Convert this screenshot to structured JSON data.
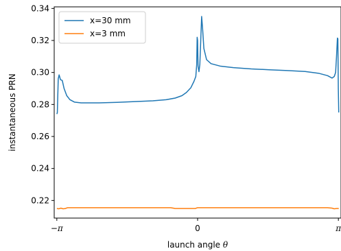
{
  "chart_data": {
    "type": "line",
    "xlabel": "launch angle",
    "xlabel_symbol": "θ",
    "ylabel": "instantaneous PRN",
    "xlim": [
      -3.2,
      3.2
    ],
    "ylim": [
      0.209,
      0.341
    ],
    "x_ticks": [
      {
        "value": -3.14159,
        "minus": "−",
        "symbol": "π"
      },
      {
        "value": 0,
        "minus": "",
        "symbol": "0"
      },
      {
        "value": 3.14159,
        "minus": "",
        "symbol": "π"
      }
    ],
    "y_ticks": [
      {
        "value": 0.22,
        "label": "0.22"
      },
      {
        "value": 0.24,
        "label": "0.24"
      },
      {
        "value": 0.26,
        "label": "0.26"
      },
      {
        "value": 0.28,
        "label": "0.28"
      },
      {
        "value": 0.3,
        "label": "0.30"
      },
      {
        "value": 0.32,
        "label": "0.32"
      },
      {
        "value": 0.34,
        "label": "0.34"
      }
    ],
    "grid": false,
    "legend_position": "top-left",
    "series": [
      {
        "name": "x=30 mm",
        "color": "#1f77b4",
        "points": [
          [
            -3.14,
            0.274
          ],
          [
            -3.13,
            0.275
          ],
          [
            -3.11,
            0.296
          ],
          [
            -3.09,
            0.2985
          ],
          [
            -3.06,
            0.2955
          ],
          [
            -3.02,
            0.295
          ],
          [
            -2.98,
            0.29
          ],
          [
            -2.92,
            0.2855
          ],
          [
            -2.85,
            0.283
          ],
          [
            -2.75,
            0.2815
          ],
          [
            -2.6,
            0.281
          ],
          [
            -2.2,
            0.281
          ],
          [
            -1.8,
            0.2813
          ],
          [
            -1.4,
            0.2818
          ],
          [
            -1.0,
            0.2823
          ],
          [
            -0.7,
            0.283
          ],
          [
            -0.5,
            0.284
          ],
          [
            -0.35,
            0.2855
          ],
          [
            -0.25,
            0.2875
          ],
          [
            -0.15,
            0.2905
          ],
          [
            -0.08,
            0.2945
          ],
          [
            -0.04,
            0.2975
          ],
          [
            -0.02,
            0.305
          ],
          [
            -0.01,
            0.322
          ],
          [
            0.0,
            0.32
          ],
          [
            0.01,
            0.304
          ],
          [
            0.03,
            0.3005
          ],
          [
            0.05,
            0.305
          ],
          [
            0.07,
            0.32
          ],
          [
            0.09,
            0.335
          ],
          [
            0.11,
            0.328
          ],
          [
            0.14,
            0.315
          ],
          [
            0.2,
            0.308
          ],
          [
            0.3,
            0.3055
          ],
          [
            0.5,
            0.304
          ],
          [
            0.8,
            0.303
          ],
          [
            1.2,
            0.3022
          ],
          [
            1.6,
            0.3017
          ],
          [
            2.0,
            0.3012
          ],
          [
            2.4,
            0.3006
          ],
          [
            2.7,
            0.2995
          ],
          [
            2.9,
            0.298
          ],
          [
            3.0,
            0.2965
          ],
          [
            3.05,
            0.2975
          ],
          [
            3.08,
            0.3
          ],
          [
            3.1,
            0.31
          ],
          [
            3.12,
            0.3215
          ],
          [
            3.13,
            0.321
          ],
          [
            3.14,
            0.29
          ],
          [
            3.15,
            0.275
          ]
        ]
      },
      {
        "name": "x=3 mm",
        "color": "#ff7f0e",
        "points": [
          [
            -3.14,
            0.215
          ],
          [
            -3.1,
            0.2148
          ],
          [
            -3.05,
            0.2152
          ],
          [
            -3.0,
            0.2148
          ],
          [
            -2.95,
            0.215
          ],
          [
            -2.9,
            0.2155
          ],
          [
            -2.5,
            0.2155
          ],
          [
            -2.0,
            0.2155
          ],
          [
            -1.5,
            0.2155
          ],
          [
            -1.0,
            0.2155
          ],
          [
            -0.6,
            0.2155
          ],
          [
            -0.5,
            0.215
          ],
          [
            -0.2,
            0.215
          ],
          [
            -0.05,
            0.215
          ],
          [
            0.0,
            0.2155
          ],
          [
            0.5,
            0.2155
          ],
          [
            1.0,
            0.2155
          ],
          [
            1.5,
            0.2155
          ],
          [
            2.0,
            0.2155
          ],
          [
            2.5,
            0.2155
          ],
          [
            2.9,
            0.2155
          ],
          [
            3.0,
            0.2152
          ],
          [
            3.05,
            0.2148
          ],
          [
            3.1,
            0.215
          ],
          [
            3.15,
            0.215
          ]
        ]
      }
    ]
  }
}
